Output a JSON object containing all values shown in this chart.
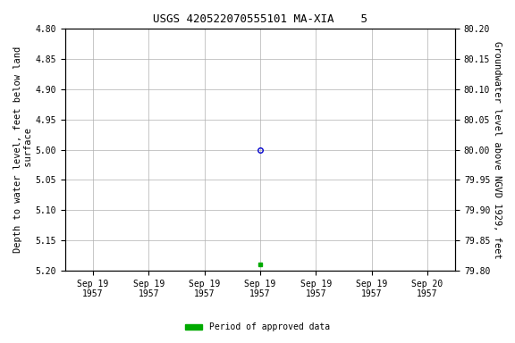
{
  "title": "USGS 420522070555101 MA-XIA    5",
  "ylabel_left": "Depth to water level, feet below land\n surface",
  "ylabel_right": "Groundwater level above NGVD 1929, feet",
  "ylim_left": [
    5.2,
    4.8
  ],
  "ylim_right": [
    79.8,
    80.2
  ],
  "yticks_left": [
    4.8,
    4.85,
    4.9,
    4.95,
    5.0,
    5.05,
    5.1,
    5.15,
    5.2
  ],
  "yticks_right": [
    80.2,
    80.15,
    80.1,
    80.05,
    80.0,
    79.95,
    79.9,
    79.85,
    79.8
  ],
  "xtick_positions": [
    0,
    1,
    2,
    3,
    4,
    5,
    6
  ],
  "xtick_labels": [
    "Sep 19\n1957",
    "Sep 19\n1957",
    "Sep 19\n1957",
    "Sep 19\n1957",
    "Sep 19\n1957",
    "Sep 19\n1957",
    "Sep 20\n1957"
  ],
  "xlim": [
    -0.5,
    6.5
  ],
  "data_point_x": 3,
  "data_point_y": 5.0,
  "data_point_color": "#0000cc",
  "data_point_markersize": 4,
  "green_marker_x": 3,
  "green_marker_y": 5.19,
  "green_marker_color": "#00aa00",
  "green_marker_markersize": 3,
  "background_color": "#ffffff",
  "grid_color": "#b0b0b0",
  "legend_label": "Period of approved data",
  "legend_color": "#00aa00",
  "title_fontsize": 9,
  "axis_fontsize": 7.5,
  "tick_fontsize": 7,
  "font_family": "monospace"
}
